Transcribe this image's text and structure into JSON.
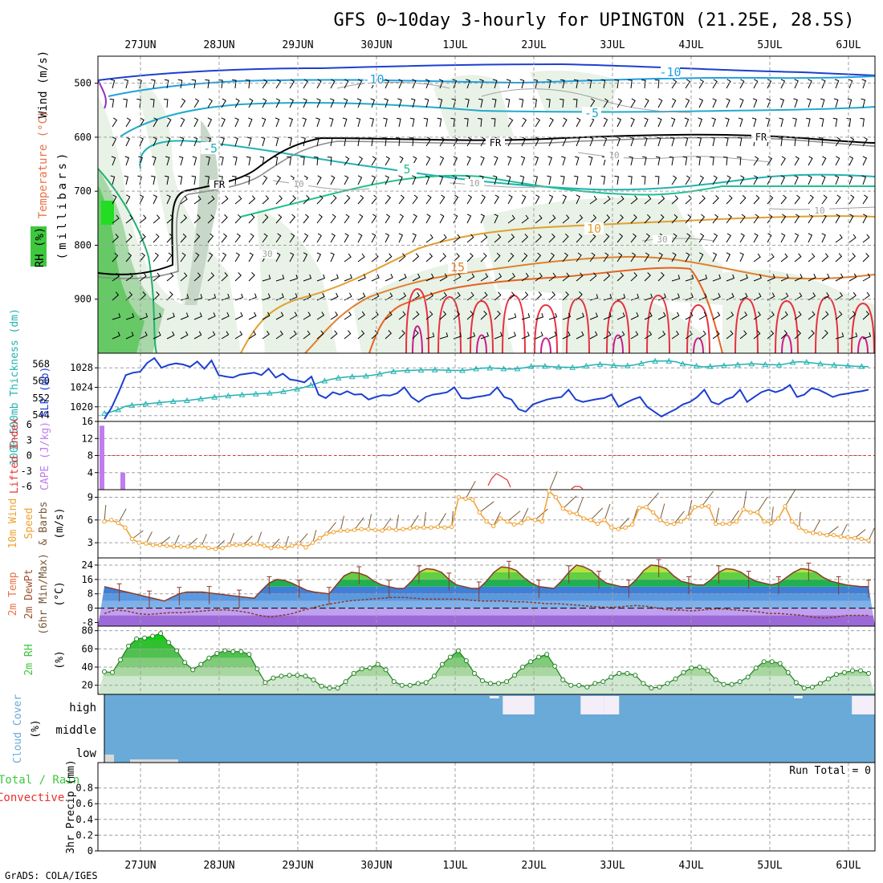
{
  "header": {
    "title": "GFS 0~10day 3-hourly for UPINGTON (21.25E, 28.5S)"
  },
  "footer": {
    "credit": "GrADS: COLA/IGES"
  },
  "time_axis": {
    "labels": [
      "27JUN",
      "28JUN",
      "29JUN",
      "30JUN",
      "1JUL",
      "2JUL",
      "3JUL",
      "4JUL",
      "5JUL",
      "6JUL"
    ]
  },
  "colors": {
    "slp": "#1c3fd0",
    "thickness": "#22b2b2",
    "cape": "#c07cf0",
    "lifted_index": "#e83030",
    "wind_speed": "#f0a030",
    "barb": "#7a5a3a",
    "rh_fill": "#3ec83e",
    "cloud": "#6aaad8",
    "frame": "#000000",
    "grid": "#a0a0a0"
  },
  "chart_data": [
    {
      "id": "upper_air",
      "type": "heatmap",
      "ylabel_parts": [
        "RH (%)",
        "Temperature (°C)",
        "Wind (m/s)"
      ],
      "ylabel_unit": "(millibars)",
      "yticks": [
        "500",
        "600",
        "700",
        "800",
        "900"
      ],
      "ylim": [
        1000,
        450
      ],
      "contour_labels": [
        "-10",
        "-10",
        "-5",
        "-5",
        "5",
        "10",
        "15",
        "FR",
        "FR",
        "FR",
        "10",
        "10",
        "10",
        "10",
        "30",
        "30"
      ]
    },
    {
      "id": "slp_thickness",
      "type": "line",
      "ylabel_left": "1000~500mb Thickness (dm)",
      "ylabel_right": "SLP (mb)",
      "yticks_thickness": [
        "544",
        "552",
        "560",
        "568"
      ],
      "yticks_slp": [
        "1020",
        "1024",
        "1028"
      ],
      "slp_lim": [
        1017,
        1031
      ],
      "series": [
        {
          "name": "SLP",
          "values": [
            1017.5,
            1019.8,
            1023.0,
            1026.5,
            1027.0,
            1027.2,
            1029.0,
            1030.0,
            1028.0,
            1028.6,
            1028.9,
            1028.7,
            1028.2,
            1029.3,
            1027.8,
            1029.5,
            1026.5,
            1026.2,
            1026.0,
            1026.6,
            1026.8,
            1027.0,
            1026.5,
            1027.8,
            1026.0,
            1026.8,
            1025.6,
            1025.4,
            1025.0,
            1026.2,
            1022.5,
            1021.8,
            1023.0,
            1022.5,
            1023.2,
            1022.5,
            1022.6,
            1021.5,
            1022.0,
            1022.4,
            1022.3,
            1022.8,
            1024.0,
            1022.0,
            1021.0,
            1022.0,
            1022.5,
            1022.7,
            1023.0,
            1024.0,
            1021.8,
            1021.7,
            1022.0,
            1022.2,
            1022.5,
            1024.0,
            1022.0,
            1021.5,
            1019.5,
            1019.0,
            1020.5,
            1021.0,
            1021.5,
            1021.8,
            1022.0,
            1023.5,
            1021.5,
            1021.0,
            1021.3,
            1021.6,
            1021.8,
            1022.5,
            1020.0,
            1020.8,
            1021.5,
            1022.0,
            1020.0,
            1019.0,
            1018.0,
            1018.8,
            1019.5,
            1020.5,
            1021.0,
            1022.0,
            1023.5,
            1021.0,
            1020.5,
            1021.5,
            1022.0,
            1023.5,
            1021.0,
            1022.0,
            1023.0,
            1023.5,
            1023.0,
            1023.5,
            1024.5,
            1022.0,
            1022.5,
            1023.8,
            1023.5,
            1022.8,
            1022.0,
            1022.5,
            1022.7,
            1023.0,
            1023.2,
            1023.5
          ]
        },
        {
          "name": "Thickness",
          "values": [
            544.8,
            545.5,
            546.5,
            548.0,
            548.6,
            548.9,
            549.2,
            549.5,
            549.8,
            550.1,
            550.4,
            550.6,
            550.8,
            551.2,
            551.6,
            552.0,
            552.4,
            552.7,
            553.0,
            553.3,
            553.5,
            553.7,
            553.9,
            554.1,
            554.3,
            554.5,
            555.0,
            555.6,
            556.2,
            557.0,
            558.0,
            559.0,
            560.0,
            560.8,
            561.4,
            561.8,
            562.0,
            562.2,
            562.3,
            562.7,
            563.3,
            564.0,
            564.4,
            564.7,
            564.9,
            565.0,
            565.1,
            565.2,
            565.2,
            565.1,
            565.0,
            564.9,
            564.9,
            565.2,
            565.7,
            566.0,
            566.1,
            565.9,
            565.7,
            565.6,
            565.7,
            566.2,
            566.8,
            567.0,
            566.9,
            566.7,
            566.5,
            566.4,
            566.3,
            566.5,
            567.0,
            567.5,
            567.8,
            567.6,
            567.3,
            567.0,
            567.1,
            567.5,
            568.2,
            569.0,
            569.3,
            569.3,
            569.3,
            569.0,
            568.0,
            567.5,
            567.0,
            566.6,
            566.8,
            567.0,
            567.2,
            567.4,
            567.6,
            567.8,
            568.0,
            567.9,
            567.7,
            567.6,
            567.5,
            568.0,
            568.7,
            569.0,
            568.8,
            568.4,
            568.0,
            567.7,
            567.5,
            567.3,
            567.1,
            566.9,
            566.8,
            566.7
          ]
        }
      ]
    },
    {
      "id": "cape_li",
      "type": "bar",
      "ylabel_left": "Lifted Index",
      "ylabel_right": "CAPE (J/kg)",
      "yticks_li": [
        "6",
        "3",
        "0",
        "-3",
        "-6"
      ],
      "yticks_cape": [
        "4",
        "8",
        "12",
        "16"
      ],
      "cape_lim": [
        0,
        16
      ],
      "series": [
        {
          "name": "CAPE",
          "values": [
            15,
            0,
            0,
            0,
            4
          ]
        }
      ]
    },
    {
      "id": "wind10m",
      "type": "line",
      "ylabel": "10m Wind Speed & Barbs (m/s)",
      "ylabel_parts": [
        "10m Wind",
        "Speed",
        "& Barbs"
      ],
      "yticks": [
        "3",
        "6",
        "9"
      ],
      "ylim": [
        1,
        10
      ],
      "series": [
        {
          "name": "Wind Speed",
          "values": [
            5.8,
            6.0,
            5.6,
            5.0,
            3.5,
            3.0,
            2.9,
            2.7,
            2.7,
            2.6,
            2.5,
            2.5,
            2.5,
            2.4,
            2.6,
            2.3,
            2.2,
            2.3,
            2.7,
            2.7,
            2.7,
            2.8,
            2.8,
            2.6,
            2.3,
            2.5,
            2.3,
            2.6,
            2.9,
            2.4,
            3.0,
            3.6,
            4.2,
            4.4,
            4.6,
            4.6,
            4.7,
            4.8,
            4.8,
            4.7,
            4.6,
            4.9,
            4.7,
            4.8,
            4.9,
            5.0,
            5.0,
            5.0,
            5.1,
            5.0,
            5.1,
            9.0,
            8.8,
            8.7,
            7.0,
            5.8,
            5.2,
            6.2,
            5.8,
            5.4,
            5.6,
            6.2,
            6.0,
            5.8,
            9.8,
            9.0,
            7.5,
            7.0,
            6.8,
            6.2,
            6.0,
            5.5,
            6.0,
            5.0,
            4.8,
            5.0,
            5.4,
            7.6,
            7.7,
            7.0,
            6.0,
            5.5,
            5.5,
            5.8,
            6.4,
            7.7,
            7.8,
            7.8,
            5.5,
            5.5,
            5.5,
            5.8,
            7.4,
            7.0,
            7.0,
            5.8,
            5.6,
            6.2,
            7.8,
            5.8,
            5.0,
            4.5,
            4.3,
            4.2,
            4.0,
            4.0,
            3.8,
            3.7,
            3.6,
            3.5,
            3.3
          ]
        }
      ]
    },
    {
      "id": "temp2m",
      "type": "area",
      "ylabel_parts": [
        "2m Temp",
        "2m DewPt",
        "(6hr Min/Max)",
        "(°C)"
      ],
      "yticks": [
        "-8",
        "0",
        "8",
        "16",
        "24"
      ],
      "ylim": [
        -10,
        28
      ],
      "series": [
        {
          "name": "2m Temp",
          "values": [
            12,
            11,
            10,
            9,
            8,
            7,
            6,
            5,
            4,
            6,
            8,
            9,
            9,
            9,
            8.5,
            8,
            7.5,
            7,
            6.5,
            6,
            5.5,
            10,
            14,
            16,
            15.5,
            14,
            12,
            10,
            9,
            8.5,
            8,
            13,
            18,
            20,
            19.5,
            18,
            15,
            13,
            12,
            11,
            11,
            15,
            20,
            22,
            21.5,
            20,
            16,
            13,
            12,
            11,
            11,
            15,
            20,
            23,
            22.5,
            21,
            17,
            14,
            12,
            11.5,
            11,
            15,
            20,
            24,
            23,
            21,
            17,
            14,
            13,
            12,
            12,
            16,
            21,
            24,
            23.5,
            22,
            18,
            15,
            14,
            13,
            13,
            16,
            20,
            22,
            21.5,
            20,
            17,
            15,
            14,
            13,
            14,
            17,
            20,
            22,
            21.5,
            20,
            17,
            15,
            14,
            13,
            12.5,
            12,
            12
          ]
        },
        {
          "name": "2m DewPt",
          "values": [
            -3,
            -1,
            -1.5,
            -3,
            -3.5,
            -3,
            -2.5,
            -2.5,
            -2,
            -1.5,
            -1,
            -1,
            -1.5,
            -2.5,
            -4,
            -5,
            -4,
            -3,
            -1,
            0.5,
            2,
            3,
            4,
            4.5,
            5,
            5.5,
            6,
            6,
            5.5,
            5,
            5,
            5,
            5,
            4.5,
            4,
            4,
            4,
            3.5,
            3.5,
            3,
            2.5,
            2.5,
            2,
            1.5,
            1,
            0.5,
            0.5,
            1,
            1.5,
            1,
            0,
            -1,
            -1,
            -1.5,
            -1,
            -0.5,
            -0.5,
            -1,
            -1.5,
            -2,
            -3,
            -3,
            -3.5,
            -4,
            -5,
            -5.5,
            -5,
            -4,
            -4,
            -4
          ]
        }
      ]
    },
    {
      "id": "rh2m",
      "type": "area",
      "ylabel": "2m RH (%)",
      "yticks": [
        "20",
        "40",
        "60",
        "80"
      ],
      "ylim": [
        10,
        85
      ],
      "series": [
        {
          "name": "2m RH",
          "values": [
            35,
            34,
            48,
            63,
            71,
            72,
            74,
            77,
            67,
            58,
            45,
            37,
            43,
            50,
            55,
            58,
            57,
            57,
            54,
            38,
            23,
            28,
            30,
            31,
            31,
            30,
            26,
            19,
            17,
            17,
            24,
            33,
            38,
            39,
            43,
            37,
            24,
            20,
            20,
            22,
            23,
            30,
            43,
            51,
            58,
            47,
            33,
            25,
            22,
            22,
            24,
            31,
            40,
            46,
            51,
            54,
            41,
            26,
            20,
            20,
            18,
            22,
            24,
            29,
            33,
            33,
            31,
            22,
            17,
            18,
            22,
            27,
            34,
            39,
            40,
            36,
            26,
            21,
            21,
            24,
            29,
            39,
            46,
            46,
            44,
            34,
            23,
            17,
            18,
            22,
            27,
            32,
            34,
            36,
            36,
            33
          ]
        }
      ]
    },
    {
      "id": "cloud",
      "type": "area",
      "ylabel": "Cloud Cover (%)",
      "yticks": [
        "high",
        "middle",
        "low"
      ],
      "runs": [
        {
          "band": "high",
          "start": 50.0,
          "end": 51.2
        },
        {
          "band": "high",
          "start": 51.7,
          "end": 55.8
        },
        {
          "band": "high",
          "start": 61.8,
          "end": 64.8
        },
        {
          "band": "high",
          "start": 64.8,
          "end": 66.8
        },
        {
          "band": "high",
          "start": 89.5,
          "end": 90.6
        },
        {
          "band": "high",
          "start": 97.0,
          "end": 100.0
        }
      ]
    },
    {
      "id": "precip",
      "type": "bar",
      "ylabel_parts": [
        "Total / Rain",
        "Convective",
        "3hr Precip (mm)"
      ],
      "yticks": [
        "0",
        "0.2",
        "0.4",
        "0.6",
        "0.8"
      ],
      "ylim": [
        0,
        1
      ],
      "annotation": "Run Total = 0",
      "values": []
    }
  ]
}
